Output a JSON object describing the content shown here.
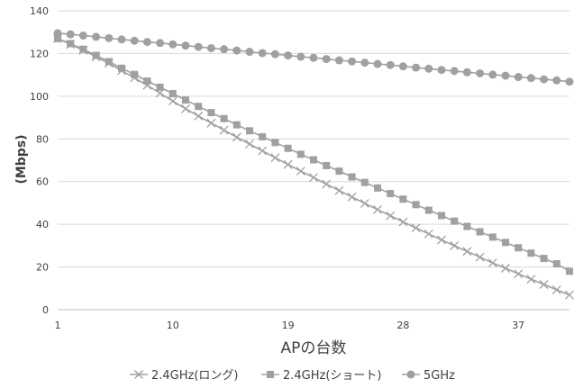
{
  "chart_data": {
    "type": "line",
    "title": "",
    "xlabel": "APの台数",
    "ylabel": "(Mbps)",
    "x_range": [
      1,
      41
    ],
    "x_ticks": [
      1,
      10,
      19,
      28,
      37
    ],
    "ylim": [
      0,
      140
    ],
    "y_ticks": [
      0,
      20,
      40,
      60,
      80,
      100,
      120,
      140
    ],
    "grid": "horizontal",
    "legend_position": "bottom",
    "line_color": "#a0a0a0",
    "series": [
      {
        "name": "2.4GHz(ロング)",
        "marker": "x",
        "x": [
          1,
          2,
          3,
          4,
          5,
          6,
          7,
          8,
          9,
          10,
          11,
          12,
          13,
          14,
          15,
          16,
          17,
          18,
          19,
          20,
          21,
          22,
          23,
          24,
          25,
          26,
          27,
          28,
          29,
          30,
          31,
          32,
          33,
          34,
          35,
          36,
          37,
          38,
          39,
          40,
          41
        ],
        "y": [
          127,
          124.3,
          121.5,
          118.4,
          115.4,
          112,
          108.6,
          105.1,
          101.4,
          97.7,
          94.1,
          90.7,
          87.4,
          84.1,
          80.8,
          77.6,
          74.4,
          71.2,
          68,
          64.9,
          61.9,
          58.8,
          55.8,
          52.8,
          49.8,
          46.9,
          44,
          41.1,
          38.3,
          35.5,
          32.7,
          30,
          27.3,
          24.6,
          21.9,
          19.4,
          16.8,
          14.3,
          11.8,
          9.3,
          6.9
        ]
      },
      {
        "name": "2.4GHz(ショート)",
        "marker": "square",
        "x": [
          1,
          2,
          3,
          4,
          5,
          6,
          7,
          8,
          9,
          10,
          11,
          12,
          13,
          14,
          15,
          16,
          17,
          18,
          19,
          20,
          21,
          22,
          23,
          24,
          25,
          26,
          27,
          28,
          29,
          30,
          31,
          32,
          33,
          34,
          35,
          36,
          37,
          38,
          39,
          40,
          41
        ],
        "y": [
          127,
          124.6,
          122,
          119.1,
          116.2,
          113.1,
          110.2,
          107.1,
          104.2,
          101.2,
          98.2,
          95.2,
          92.3,
          89.5,
          86.6,
          83.8,
          81,
          78.3,
          75.6,
          72.8,
          70.2,
          67.5,
          64.9,
          62.2,
          59.6,
          57,
          54.4,
          51.8,
          49.2,
          46.6,
          44.1,
          41.5,
          39,
          36.5,
          34,
          31.5,
          29,
          26.5,
          24,
          21.5,
          18
        ]
      },
      {
        "name": "5GHz",
        "marker": "circle",
        "x": [
          1,
          2,
          3,
          4,
          5,
          6,
          7,
          8,
          9,
          10,
          11,
          12,
          13,
          14,
          15,
          16,
          17,
          18,
          19,
          20,
          21,
          22,
          23,
          24,
          25,
          26,
          27,
          28,
          29,
          30,
          31,
          32,
          33,
          34,
          35,
          36,
          37,
          38,
          39,
          40,
          41
        ],
        "y": [
          129.5,
          129,
          128.4,
          127.8,
          127.2,
          126.6,
          126,
          125.4,
          124.9,
          124.3,
          123.7,
          123.1,
          122.5,
          122,
          121.4,
          120.8,
          120.2,
          119.7,
          119.1,
          118.5,
          118,
          117.4,
          116.8,
          116.3,
          115.7,
          115.1,
          114.6,
          114,
          113.4,
          112.9,
          112.3,
          111.8,
          111.2,
          110.7,
          110.1,
          109.6,
          109,
          108.5,
          107.9,
          107.4,
          106.8
        ]
      }
    ]
  }
}
